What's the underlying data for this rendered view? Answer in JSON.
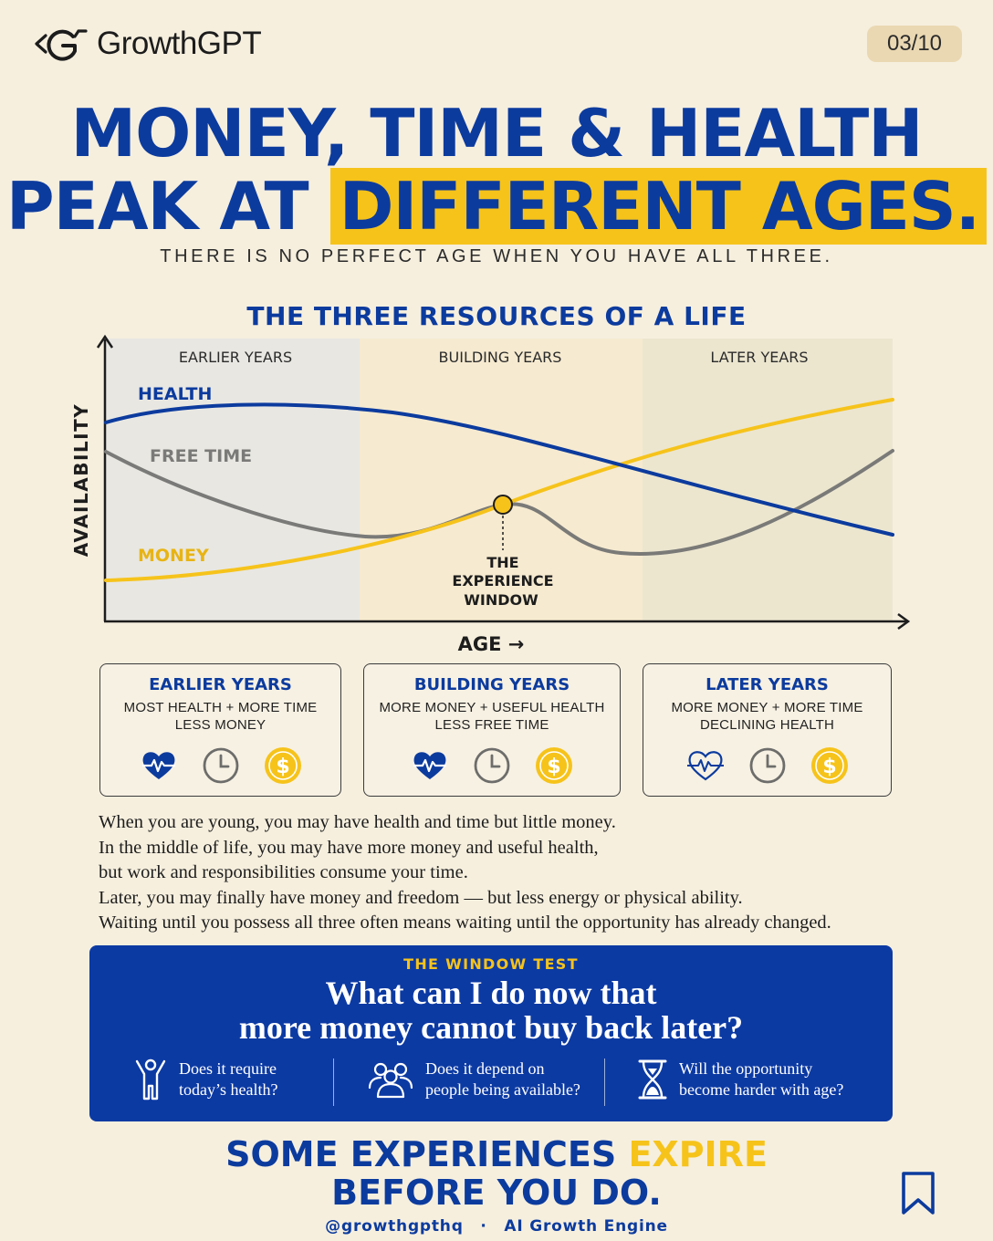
{
  "brand": {
    "name": "GrowthGPT",
    "page_indicator": "03/10"
  },
  "headline": {
    "line1": "MONEY, TIME & HEALTH",
    "line2_prefix": "PEAK AT",
    "line2_highlight": "DIFFERENT AGES."
  },
  "subheading": "THERE IS NO PERFECT AGE WHEN YOU HAVE ALL THREE.",
  "chart_title": "THE THREE RESOURCES OF A LIFE",
  "chart": {
    "y_axis_label": "AVAILABILITY",
    "x_axis_label": "AGE →",
    "zones": [
      "EARLIER YEARS",
      "BUILDING YEARS",
      "LATER YEARS"
    ],
    "series_labels": {
      "health": "HEALTH",
      "free_time": "FREE TIME",
      "money": "MONEY"
    },
    "annotation": [
      "THE",
      "EXPERIENCE",
      "WINDOW"
    ]
  },
  "colors": {
    "blue": "#0c3b9e",
    "yellow": "#f6c31b",
    "gray": "#7a7a78"
  },
  "cards": [
    {
      "title": "EARLIER YEARS",
      "line1": "MOST HEALTH + MORE TIME",
      "line2": "LESS MONEY",
      "icons": [
        "heart-pulse-icon",
        "clock-icon",
        "dollar-coin-icon"
      ]
    },
    {
      "title": "BUILDING YEARS",
      "line1": "MORE MONEY + USEFUL HEALTH",
      "line2": "LESS FREE TIME",
      "icons": [
        "heart-pulse-icon",
        "clock-icon",
        "dollar-coin-icon"
      ]
    },
    {
      "title": "LATER YEARS",
      "line1": "MORE MONEY + MORE TIME",
      "line2": "DECLINING HEALTH",
      "icons": [
        "heart-outline-pulse-icon",
        "clock-icon",
        "dollar-coin-icon"
      ]
    }
  ],
  "paragraph": [
    "When you are young, you may have health and time but little money.",
    "In the middle of life, you may have more money and useful health,",
    "but work and responsibilities consume your time.",
    "Later, you may finally have money and freedom — but less energy or physical ability.",
    "Waiting until you possess all three often means waiting until the opportunity has already changed."
  ],
  "window_test": {
    "label": "THE WINDOW TEST",
    "question_line1": "What can I do now that",
    "question_line2": "more money cannot buy back later?",
    "questions": [
      {
        "icon": "person-raised-arms-icon",
        "line1": "Does it require",
        "line2": "today’s health?"
      },
      {
        "icon": "people-group-icon",
        "line1": "Does it depend on",
        "line2": "people being available?"
      },
      {
        "icon": "hourglass-icon",
        "line1": "Will the opportunity",
        "line2": "become harder with age?"
      }
    ]
  },
  "closing": {
    "line1_prefix": "SOME EXPERIENCES",
    "line1_highlight": "EXPIRE",
    "line2": "BEFORE YOU DO."
  },
  "footer": {
    "handle": "@growthgpthq",
    "separator": "·",
    "tagline": "AI Growth Engine"
  }
}
